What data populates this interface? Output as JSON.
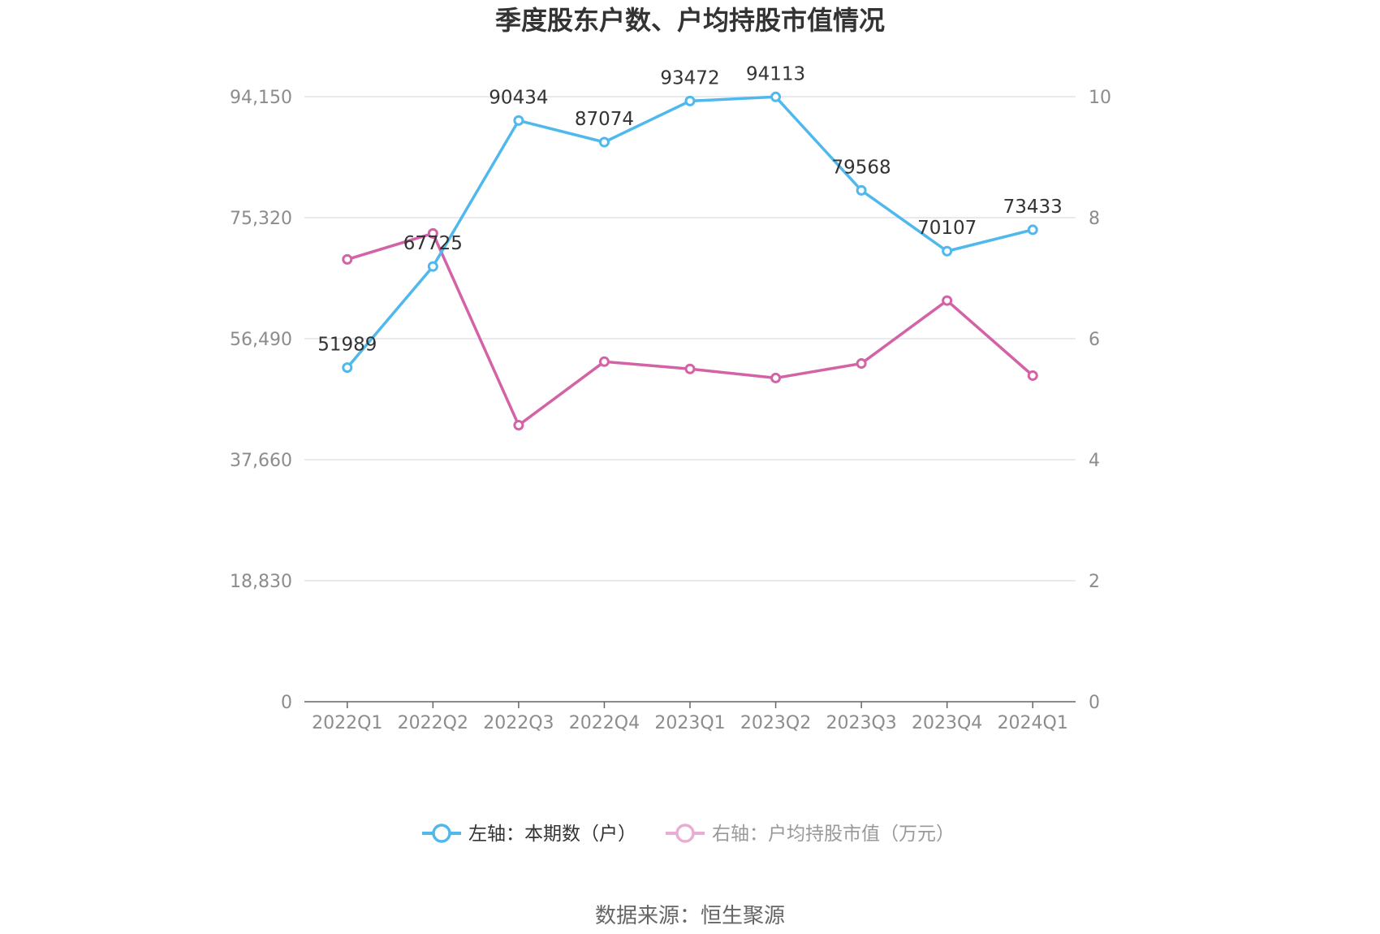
{
  "chart_data": {
    "type": "line",
    "title": "季度股东户数、户均持股市值情况",
    "categories": [
      "2022Q1",
      "2022Q2",
      "2022Q3",
      "2022Q4",
      "2023Q1",
      "2023Q2",
      "2023Q3",
      "2023Q4",
      "2024Q1"
    ],
    "left_axis": {
      "ticks": [
        "0",
        "18,830",
        "37,660",
        "56,490",
        "75,320",
        "94,150"
      ],
      "ylim": [
        0,
        94150
      ]
    },
    "right_axis": {
      "ticks": [
        "0",
        "2",
        "4",
        "6",
        "8",
        "10"
      ],
      "ylim": [
        0,
        10
      ]
    },
    "series": [
      {
        "name": "左轴：本期数（户）",
        "axis": "left",
        "color": "#4fb8ec",
        "values": [
          51989,
          67725,
          90434,
          87074,
          93472,
          94113,
          79568,
          70107,
          73433
        ],
        "labels": [
          "51989",
          "67725",
          "90434",
          "87074",
          "93472",
          "94113",
          "79568",
          "70107",
          "73433"
        ]
      },
      {
        "name": "右轴：户均持股市值（万元）",
        "axis": "right",
        "color": "#d462a6",
        "values": [
          7.31,
          7.74,
          4.57,
          5.62,
          5.5,
          5.35,
          5.59,
          6.63,
          5.39
        ]
      }
    ],
    "grid": true,
    "legend_position": "bottom"
  },
  "source": "数据来源：恒生聚源"
}
